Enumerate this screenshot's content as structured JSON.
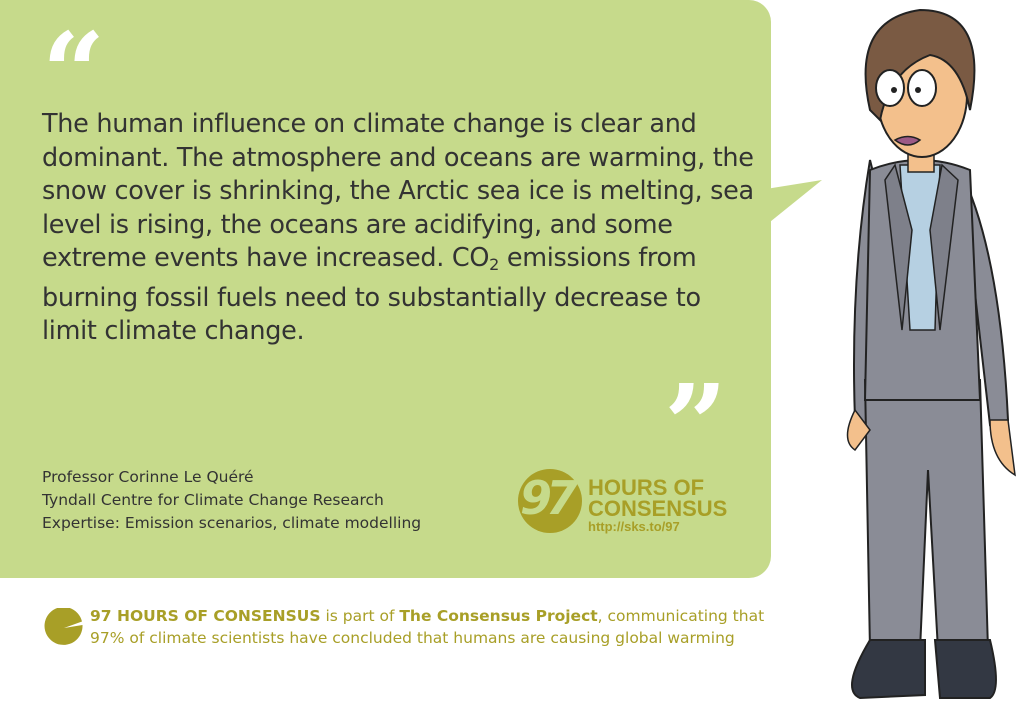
{
  "quote": {
    "open_mark": "“",
    "close_mark": "”",
    "text_before_sub": "The human influence on climate change is clear and dominant. The atmosphere and oceans are warming, the snow cover is shrinking, the Arctic sea ice is melting, sea level is rising, the oceans are acidifying, and some extreme events have increased. CO",
    "subscript": "2",
    "text_after_sub": " emissions from burning fossil fuels need to substantially decrease to limit climate change."
  },
  "attribution": {
    "name": "Professor Corinne Le Quéré",
    "institution": "Tyndall Centre for Climate Change Research",
    "expertise": "Expertise: Emission scenarios, climate modelling"
  },
  "logo": {
    "number": "97",
    "line1": "HOURS OF",
    "line2": "CONSENSUS",
    "url": "http://sks.to/97"
  },
  "footer": {
    "bold1": "97 HOURS OF CONSENSUS",
    "text1": " is part of ",
    "bold2": "The Consensus Project",
    "text2": ", communicating that",
    "line2": "97% of climate scientists have concluded that humans are causing global warming"
  },
  "colors": {
    "bubble": "#c6da8b",
    "accent": "#a89f27",
    "text": "#333333"
  }
}
